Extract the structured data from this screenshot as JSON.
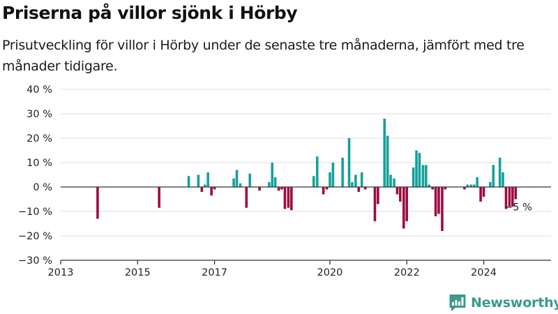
{
  "header": {
    "title": "Priserna på villor sjönk i Hörby",
    "subtitle": "Prisutveckling för villor i Hörby under de senaste tre månaderna, jämfört med tre månader tidigare."
  },
  "brand": {
    "name": "Newsworthy",
    "icon": "newsworthy-logo-icon",
    "color": "#3a9a8e"
  },
  "colors": {
    "positive": "#13a29a",
    "negative": "#9e0a41",
    "grid": "#dddddd",
    "zero_line": "#333333"
  },
  "chart_data": {
    "type": "bar",
    "title": "Priserna på villor sjönk i Hörby",
    "subtitle": "Prisutveckling för villor i Hörby under de senaste tre månaderna, jämfört med tre månader tidigare.",
    "xlabel": "",
    "ylabel": "",
    "ylim": [
      -30,
      40
    ],
    "xlim": [
      2013,
      2025.75
    ],
    "grid": true,
    "legend": "none",
    "y_ticks": [
      {
        "value": 40,
        "label": "40 %"
      },
      {
        "value": 30,
        "label": "30 %"
      },
      {
        "value": 20,
        "label": "20 %"
      },
      {
        "value": 10,
        "label": "10 %"
      },
      {
        "value": 0,
        "label": "0 %"
      },
      {
        "value": -10,
        "label": "−10 %"
      },
      {
        "value": -20,
        "label": "−20 %"
      },
      {
        "value": -30,
        "label": "−30 %"
      }
    ],
    "x_ticks": [
      {
        "value": 2013,
        "label": "2013"
      },
      {
        "value": 2015,
        "label": "2015"
      },
      {
        "value": 2017,
        "label": "2017"
      },
      {
        "value": 2020,
        "label": "2020"
      },
      {
        "value": 2022,
        "label": "2022"
      },
      {
        "value": 2024,
        "label": "2024"
      }
    ],
    "annotation": {
      "x": 2024.9,
      "y": -5,
      "label": "−5 %"
    },
    "series": [
      {
        "values": [
          {
            "x": 2013.96,
            "y": -13
          },
          {
            "x": 2015.56,
            "y": -8.5
          },
          {
            "x": 2016.33,
            "y": 4.5
          },
          {
            "x": 2016.58,
            "y": 5
          },
          {
            "x": 2016.67,
            "y": -2
          },
          {
            "x": 2016.75,
            "y": 1
          },
          {
            "x": 2016.83,
            "y": 6
          },
          {
            "x": 2016.92,
            "y": -3.5
          },
          {
            "x": 2017.0,
            "y": -1
          },
          {
            "x": 2017.5,
            "y": 3.5
          },
          {
            "x": 2017.58,
            "y": 7
          },
          {
            "x": 2017.67,
            "y": 1.5
          },
          {
            "x": 2017.83,
            "y": -8.5
          },
          {
            "x": 2017.92,
            "y": 5.5
          },
          {
            "x": 2018.17,
            "y": -1.5
          },
          {
            "x": 2018.42,
            "y": 2
          },
          {
            "x": 2018.5,
            "y": 10
          },
          {
            "x": 2018.58,
            "y": 4
          },
          {
            "x": 2018.67,
            "y": -1.5
          },
          {
            "x": 2018.75,
            "y": -1
          },
          {
            "x": 2018.83,
            "y": -9
          },
          {
            "x": 2018.92,
            "y": -8.5
          },
          {
            "x": 2019.0,
            "y": -9.5
          },
          {
            "x": 2019.58,
            "y": 4.5
          },
          {
            "x": 2019.67,
            "y": 12.5
          },
          {
            "x": 2019.83,
            "y": -3
          },
          {
            "x": 2019.92,
            "y": -1
          },
          {
            "x": 2020.0,
            "y": 6
          },
          {
            "x": 2020.08,
            "y": 10
          },
          {
            "x": 2020.33,
            "y": 12
          },
          {
            "x": 2020.5,
            "y": 20
          },
          {
            "x": 2020.58,
            "y": 2
          },
          {
            "x": 2020.67,
            "y": 5
          },
          {
            "x": 2020.75,
            "y": -2
          },
          {
            "x": 2020.83,
            "y": 6
          },
          {
            "x": 2020.92,
            "y": -1
          },
          {
            "x": 2021.17,
            "y": -14
          },
          {
            "x": 2021.25,
            "y": -7
          },
          {
            "x": 2021.42,
            "y": 28
          },
          {
            "x": 2021.5,
            "y": 21
          },
          {
            "x": 2021.58,
            "y": 5
          },
          {
            "x": 2021.67,
            "y": 3.5
          },
          {
            "x": 2021.75,
            "y": -3
          },
          {
            "x": 2021.83,
            "y": -6
          },
          {
            "x": 2021.92,
            "y": -17
          },
          {
            "x": 2022.0,
            "y": -14
          },
          {
            "x": 2022.17,
            "y": 8
          },
          {
            "x": 2022.25,
            "y": 15
          },
          {
            "x": 2022.33,
            "y": 14
          },
          {
            "x": 2022.42,
            "y": 9
          },
          {
            "x": 2022.5,
            "y": 9
          },
          {
            "x": 2022.58,
            "y": 1
          },
          {
            "x": 2022.67,
            "y": -1
          },
          {
            "x": 2022.75,
            "y": -12
          },
          {
            "x": 2022.83,
            "y": -11
          },
          {
            "x": 2022.92,
            "y": -18
          },
          {
            "x": 2023.0,
            "y": -1
          },
          {
            "x": 2023.5,
            "y": -1
          },
          {
            "x": 2023.58,
            "y": 1
          },
          {
            "x": 2023.67,
            "y": 1
          },
          {
            "x": 2023.75,
            "y": 1
          },
          {
            "x": 2023.83,
            "y": 4
          },
          {
            "x": 2023.92,
            "y": -6
          },
          {
            "x": 2024.0,
            "y": -4
          },
          {
            "x": 2024.17,
            "y": 2
          },
          {
            "x": 2024.25,
            "y": 9
          },
          {
            "x": 2024.42,
            "y": 12
          },
          {
            "x": 2024.5,
            "y": 6
          },
          {
            "x": 2024.58,
            "y": -9
          },
          {
            "x": 2024.67,
            "y": -8
          },
          {
            "x": 2024.75,
            "y": -8
          },
          {
            "x": 2024.83,
            "y": -5
          }
        ]
      }
    ]
  }
}
